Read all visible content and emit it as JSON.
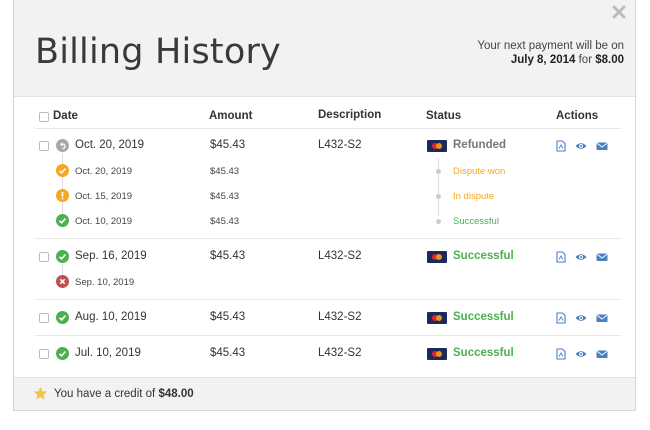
{
  "header": {
    "title": "Billing History",
    "next_payment_line1": "Your next payment will be on",
    "next_payment_date": "July 8, 2014",
    "next_payment_for": " for ",
    "next_payment_amount": "$8.00"
  },
  "table": {
    "columns": {
      "date": "Date",
      "amount": "Amount",
      "description": "Description",
      "status": "Status",
      "actions": "Actions"
    },
    "groups": [
      {
        "date": "Oct. 20, 2019",
        "amount": "$45.43",
        "description": "L432-S2",
        "status": "Refunded",
        "events": [
          {
            "date": "Oct. 20, 2019",
            "amount": "$45.43",
            "status": "Dispute won"
          },
          {
            "date": "Oct. 15, 2019",
            "amount": "$45.43",
            "status": "In dispute"
          },
          {
            "date": "Oct. 10, 2019",
            "amount": "$45.43",
            "status": "Successful"
          }
        ]
      },
      {
        "date": "Sep. 16, 2019",
        "amount": "$45.43",
        "description": "L432-S2",
        "status": "Successful",
        "events": [
          {
            "date": "Sep. 10, 2019"
          }
        ]
      },
      {
        "date": "Aug. 10, 2019",
        "amount": "$45.43",
        "description": "L432-S2",
        "status": "Successful"
      },
      {
        "date": "Jul. 10, 2019",
        "amount": "$45.43",
        "description": "L432-S2",
        "status": "Successful"
      }
    ]
  },
  "footer": {
    "credit_prefix": "You have a credit of ",
    "credit_amount": "$48.00"
  },
  "colors": {
    "success": "#4caf50",
    "warning": "#f5a623",
    "error": "#c0504d",
    "refund": "#9e9e9e",
    "link_icon": "#4a7fc1",
    "star": "#f5c242"
  },
  "icons": [
    "close-icon",
    "refund-icon",
    "check-icon",
    "exclamation-icon",
    "x-icon",
    "pdf-icon",
    "eye-icon",
    "envelope-icon",
    "star-icon",
    "mastercard-icon"
  ]
}
